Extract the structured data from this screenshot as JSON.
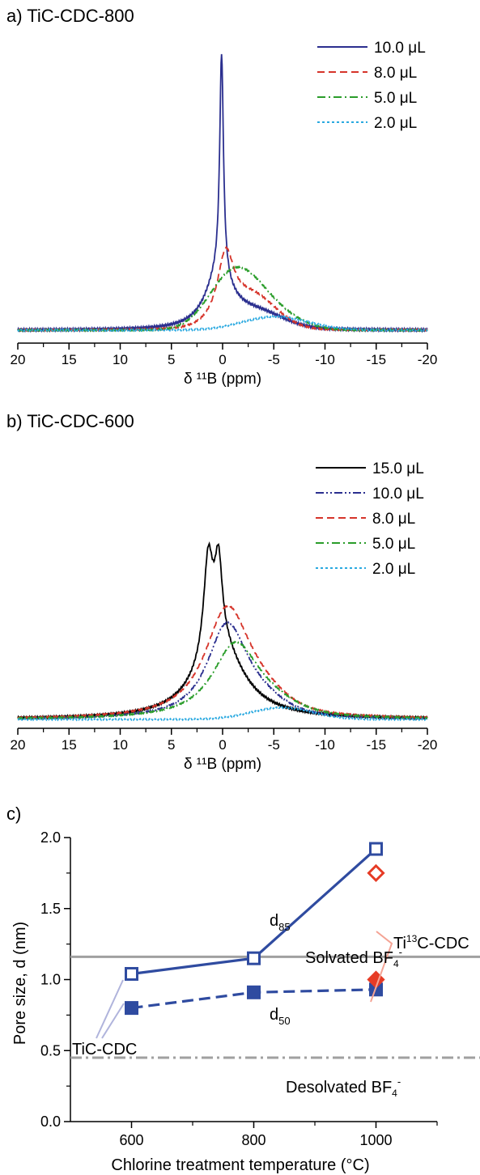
{
  "chart_data": [
    {
      "type": "line",
      "panel_label": "a) TiC-CDC-800",
      "xlabel": "δ ¹¹B (ppm)",
      "xlim": [
        20,
        -20
      ],
      "x_ticks": [
        "20",
        "15",
        "10",
        "5",
        "0",
        "-5",
        "-10",
        "-15",
        "-20"
      ],
      "ylim": [
        0,
        1.0
      ],
      "legend_position": "top-right",
      "series": [
        {
          "name": "10.0 μL",
          "color": "#2b2f8f",
          "dash": "solid",
          "peaks": [
            {
              "center": 0.1,
              "height": 0.74,
              "width": 0.22,
              "shape": "lorentz"
            },
            {
              "center": 0.4,
              "height": 0.17,
              "width": 1.6,
              "shape": "lorentz"
            },
            {
              "center": -3.3,
              "height": 0.05,
              "width": 2.6,
              "shape": "gauss"
            }
          ]
        },
        {
          "name": "8.0 μL",
          "color": "#d6342a",
          "dash": "dashed",
          "peaks": [
            {
              "center": -0.3,
              "height": 0.21,
              "width": 0.95,
              "shape": "lorentz"
            },
            {
              "center": -2.8,
              "height": 0.11,
              "width": 2.4,
              "shape": "gauss"
            }
          ]
        },
        {
          "name": "5.0 μL",
          "color": "#2a9d2a",
          "dash": "dashdot",
          "peaks": [
            {
              "center": -1.0,
              "height": 0.17,
              "width": 2.4,
              "shape": "gauss"
            },
            {
              "center": -4.2,
              "height": 0.07,
              "width": 2.8,
              "shape": "gauss"
            }
          ]
        },
        {
          "name": "2.0 μL",
          "color": "#2aa9e0",
          "dash": "dotted",
          "peaks": [
            {
              "center": -5.2,
              "height": 0.045,
              "width": 3.2,
              "shape": "gauss"
            }
          ]
        }
      ]
    },
    {
      "type": "line",
      "panel_label": "b) TiC-CDC-600",
      "xlabel": "δ ¹¹B (ppm)",
      "xlim": [
        20,
        -20
      ],
      "x_ticks": [
        "20",
        "15",
        "10",
        "5",
        "0",
        "-5",
        "-10",
        "-15",
        "-20"
      ],
      "ylim": [
        0,
        1.0
      ],
      "legend_position": "top-right",
      "series": [
        {
          "name": "15.0 μL",
          "color": "#000000",
          "dash": "solid",
          "peaks": [
            {
              "center": 1.4,
              "height": 0.37,
              "width": 0.55,
              "shape": "lorentz"
            },
            {
              "center": 0.4,
              "height": 0.3,
              "width": 0.45,
              "shape": "lorentz"
            },
            {
              "center": 0.3,
              "height": 0.28,
              "width": 2.8,
              "shape": "lorentz"
            }
          ]
        },
        {
          "name": "10.0 μL",
          "color": "#2b2f8f",
          "dash": "dashdotdot",
          "peaks": [
            {
              "center": -0.4,
              "height": 0.34,
              "width": 2.4,
              "shape": "lorentz"
            },
            {
              "center": -3.0,
              "height": 0.05,
              "width": 2.5,
              "shape": "gauss"
            }
          ]
        },
        {
          "name": "8.0 μL",
          "color": "#d6342a",
          "dash": "dashed",
          "peaks": [
            {
              "center": -0.4,
              "height": 0.4,
              "width": 2.7,
              "shape": "lorentz"
            },
            {
              "center": -3.2,
              "height": 0.06,
              "width": 2.5,
              "shape": "gauss"
            }
          ]
        },
        {
          "name": "5.0 μL",
          "color": "#2a9d2a",
          "dash": "dashdot",
          "peaks": [
            {
              "center": -1.2,
              "height": 0.27,
              "width": 2.8,
              "shape": "lorentz"
            },
            {
              "center": -4.0,
              "height": 0.04,
              "width": 2.8,
              "shape": "gauss"
            }
          ]
        },
        {
          "name": "2.0 μL",
          "color": "#2aa9e0",
          "dash": "dotted",
          "peaks": [
            {
              "center": -5.8,
              "height": 0.045,
              "width": 3.0,
              "shape": "gauss"
            }
          ]
        }
      ]
    },
    {
      "type": "scatter",
      "panel_label": "c)",
      "xlabel": "Chlorine treatment temperature (°C)",
      "ylabel": "Pore size, d (nm)",
      "xlim": [
        500,
        1100
      ],
      "ylim": [
        0.0,
        2.0
      ],
      "x_ticks": [
        "600",
        "800",
        "1000"
      ],
      "y_ticks": [
        "0.0",
        "0.5",
        "1.0",
        "1.5",
        "2.0"
      ],
      "series": [
        {
          "name": "d85",
          "color": "#2f4ba0",
          "marker": "open-square",
          "line": "solid",
          "x": [
            600,
            800,
            1000
          ],
          "y": [
            1.04,
            1.15,
            1.92
          ]
        },
        {
          "name": "d50",
          "color": "#2f4ba0",
          "marker": "filled-square",
          "line": "dashed",
          "x": [
            600,
            800,
            1000
          ],
          "y": [
            0.8,
            0.91,
            0.93
          ]
        },
        {
          "name": "Ti13C-CDC",
          "color": "#e63b25",
          "marker": "diamond",
          "x": [
            1000,
            1000
          ],
          "y": [
            1.75,
            1.0
          ]
        }
      ],
      "reference_lines": [
        {
          "label": "Solvated BF4-",
          "y": 1.16,
          "color": "#a0a0a0",
          "style": "solid"
        },
        {
          "label": "Desolvated BF4-",
          "y": 0.45,
          "color": "#a0a0a0",
          "style": "dashdot"
        }
      ],
      "annotations": {
        "d85_label": "d",
        "d85_sub": "85",
        "d50_label": "d",
        "d50_sub": "50",
        "tic_cdc": "TiC-CDC",
        "ti13c_pre": "Ti",
        "ti13c_sup": "13",
        "ti13c_post": "C-CDC",
        "solvated_main": "Solvated BF",
        "desolvated_main": "Desolvated BF",
        "bf_sub": "4",
        "bf_sup": "-"
      }
    }
  ]
}
